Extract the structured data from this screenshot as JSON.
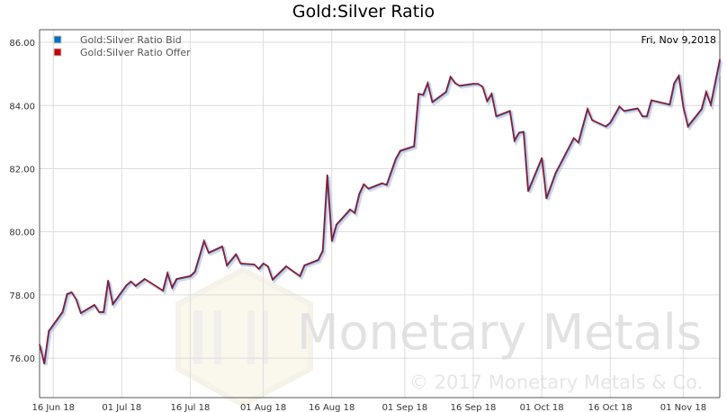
{
  "chart_data": {
    "type": "line",
    "title": "Gold:Silver Ratio",
    "date_label": "Fri, Nov 9,2018",
    "xlabel": "",
    "ylabel": "",
    "ylim": [
      74.75,
      86.4
    ],
    "xlim": [
      "2018-06-13",
      "2018-11-09"
    ],
    "yticks": [
      "76.00",
      "78.00",
      "80.00",
      "82.00",
      "84.00",
      "86.00"
    ],
    "xticks": [
      {
        "date": "2018-06-16",
        "label": "16 Jun 18"
      },
      {
        "date": "2018-07-01",
        "label": "01 Jul 18"
      },
      {
        "date": "2018-07-16",
        "label": "16 Jul 18"
      },
      {
        "date": "2018-08-01",
        "label": "01 Aug 18"
      },
      {
        "date": "2018-08-16",
        "label": "16 Aug 18"
      },
      {
        "date": "2018-09-01",
        "label": "01 Sep 18"
      },
      {
        "date": "2018-09-16",
        "label": "16 Sep 18"
      },
      {
        "date": "2018-10-01",
        "label": "01 Oct 18"
      },
      {
        "date": "2018-10-16",
        "label": "16 Oct 18"
      },
      {
        "date": "2018-11-01",
        "label": "01 Nov 18"
      }
    ],
    "grid": true,
    "legend": "top-left",
    "series": [
      {
        "name": "Gold:Silver Ratio Bid",
        "color": "#0070c0"
      },
      {
        "name": "Gold:Silver Ratio Offer",
        "color": "#c00000"
      }
    ],
    "x": [
      "2018-06-13",
      "2018-06-14",
      "2018-06-15",
      "2018-06-18",
      "2018-06-19",
      "2018-06-20",
      "2018-06-21",
      "2018-06-22",
      "2018-06-25",
      "2018-06-26",
      "2018-06-27",
      "2018-06-28",
      "2018-06-29",
      "2018-07-02",
      "2018-07-03",
      "2018-07-04",
      "2018-07-06",
      "2018-07-10",
      "2018-07-11",
      "2018-07-12",
      "2018-07-13",
      "2018-07-16",
      "2018-07-17",
      "2018-07-19",
      "2018-07-20",
      "2018-07-23",
      "2018-07-24",
      "2018-07-26",
      "2018-07-27",
      "2018-07-30",
      "2018-07-31",
      "2018-08-01",
      "2018-08-02",
      "2018-08-03",
      "2018-08-06",
      "2018-08-09",
      "2018-08-10",
      "2018-08-13",
      "2018-08-14",
      "2018-08-15",
      "2018-08-16",
      "2018-08-17",
      "2018-08-20",
      "2018-08-21",
      "2018-08-22",
      "2018-08-23",
      "2018-08-24",
      "2018-08-27",
      "2018-08-28",
      "2018-08-30",
      "2018-08-31",
      "2018-09-03",
      "2018-09-04",
      "2018-09-05",
      "2018-09-06",
      "2018-09-07",
      "2018-09-10",
      "2018-09-11",
      "2018-09-12",
      "2018-09-13",
      "2018-09-16",
      "2018-09-17",
      "2018-09-18",
      "2018-09-19",
      "2018-09-20",
      "2018-09-21",
      "2018-09-24",
      "2018-09-25",
      "2018-09-26",
      "2018-09-27",
      "2018-09-28",
      "2018-10-01",
      "2018-10-02",
      "2018-10-04",
      "2018-10-08",
      "2018-10-09",
      "2018-10-11",
      "2018-10-12",
      "2018-10-15",
      "2018-10-16",
      "2018-10-18",
      "2018-10-19",
      "2018-10-22",
      "2018-10-23",
      "2018-10-24",
      "2018-10-25",
      "2018-10-29",
      "2018-10-30",
      "2018-10-31",
      "2018-11-01",
      "2018-11-02",
      "2018-11-05",
      "2018-11-06",
      "2018-11-07",
      "2018-11-09"
    ],
    "y": [
      76.43,
      75.83,
      76.86,
      77.46,
      78.03,
      78.09,
      77.86,
      77.43,
      77.69,
      77.46,
      77.46,
      78.46,
      77.71,
      78.31,
      78.43,
      78.29,
      78.51,
      78.14,
      78.69,
      78.23,
      78.51,
      78.6,
      78.74,
      79.71,
      79.34,
      79.54,
      78.94,
      79.29,
      79.0,
      78.97,
      78.83,
      79.0,
      78.91,
      78.49,
      78.91,
      78.6,
      78.94,
      79.11,
      79.4,
      81.8,
      79.71,
      80.23,
      80.71,
      80.6,
      81.2,
      81.51,
      81.37,
      81.54,
      81.49,
      82.31,
      82.57,
      82.71,
      84.37,
      84.34,
      84.71,
      84.11,
      84.43,
      84.91,
      84.71,
      84.63,
      84.69,
      84.69,
      84.6,
      84.14,
      84.37,
      83.66,
      83.83,
      82.89,
      83.14,
      83.17,
      81.29,
      82.34,
      81.06,
      81.86,
      82.97,
      82.83,
      83.89,
      83.54,
      83.34,
      83.46,
      83.97,
      83.83,
      83.91,
      83.66,
      83.66,
      84.17,
      84.03,
      84.71,
      84.94,
      83.94,
      83.34,
      83.89,
      84.43,
      84.03,
      85.46
    ]
  },
  "watermark": {
    "brand": "Monetary Metals",
    "copyright": "© 2017 Monetary Metals & Co."
  }
}
